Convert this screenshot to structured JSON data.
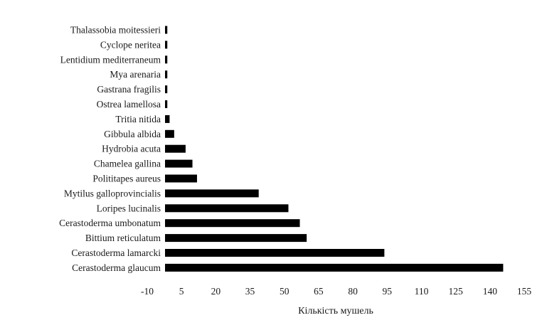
{
  "chart_data": {
    "type": "bar",
    "orientation": "horizontal",
    "title": "",
    "xlabel": "Кількість мушель",
    "ylabel": "",
    "categories": [
      "Thalassobia moitessieri",
      "Cyclope neritea",
      "Lentidium mediterraneum",
      "Mya arenaria",
      "Gastrana fragilis",
      "Ostrea lamellosa",
      "Tritia nitida",
      "Gibbula albida",
      "Hydrobia acuta",
      "Chamelea gallina",
      "Polititapes aureus",
      "Mytilus galloprovincialis",
      "Loripes lucinalis",
      "Cerastoderma umbonatum",
      "Bittium reticulatum",
      "Cerastoderma lamarcki",
      "Cerastoderma glaucum"
    ],
    "values": [
      1,
      1,
      1,
      1,
      1,
      1,
      2,
      4,
      9,
      12,
      14,
      41,
      54,
      59,
      62,
      96,
      148
    ],
    "x_ticks": [
      "-10",
      "5",
      "20",
      "35",
      "50",
      "65",
      "80",
      "95",
      "110",
      "125",
      "140",
      "155"
    ],
    "xlim": [
      -10,
      155
    ],
    "bar_color": "#000000",
    "grid": false,
    "legend": "none"
  }
}
